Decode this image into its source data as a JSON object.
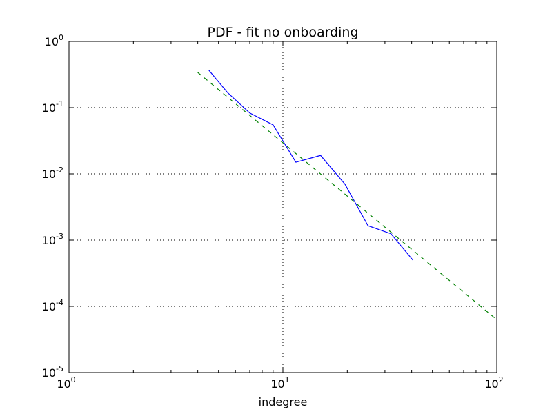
{
  "chart_data": {
    "type": "line",
    "title": "PDF - fit no onboarding",
    "xlabel": "indegree",
    "ylabel": "",
    "xscale": "log",
    "yscale": "log",
    "xlim": [
      1,
      100
    ],
    "ylim": [
      1e-05,
      1
    ],
    "grid": true,
    "x_ticks": [
      {
        "value": 1,
        "base": "10",
        "exp": "0"
      },
      {
        "value": 10,
        "base": "10",
        "exp": "1"
      },
      {
        "value": 100,
        "base": "10",
        "exp": "2"
      }
    ],
    "y_ticks": [
      {
        "value": 1,
        "base": "10",
        "exp": "0"
      },
      {
        "value": 0.1,
        "base": "10",
        "exp": "-1"
      },
      {
        "value": 0.01,
        "base": "10",
        "exp": "-2"
      },
      {
        "value": 0.001,
        "base": "10",
        "exp": "-3"
      },
      {
        "value": 0.0001,
        "base": "10",
        "exp": "-4"
      },
      {
        "value": 1e-05,
        "base": "10",
        "exp": "-5"
      }
    ],
    "series": [
      {
        "color": "#0000ff",
        "style": "solid",
        "x": [
          4.5,
          5.5,
          7.0,
          9.0,
          11.5,
          15.0,
          19.5,
          25.0,
          32.0,
          40.5
        ],
        "y": [
          0.37,
          0.17,
          0.083,
          0.055,
          0.015,
          0.019,
          0.007,
          0.00165,
          0.00125,
          0.0005
        ]
      },
      {
        "color": "#008000",
        "style": "dashed",
        "x": [
          4.0,
          100.0
        ],
        "y": [
          0.34,
          6.3e-05
        ]
      }
    ]
  }
}
